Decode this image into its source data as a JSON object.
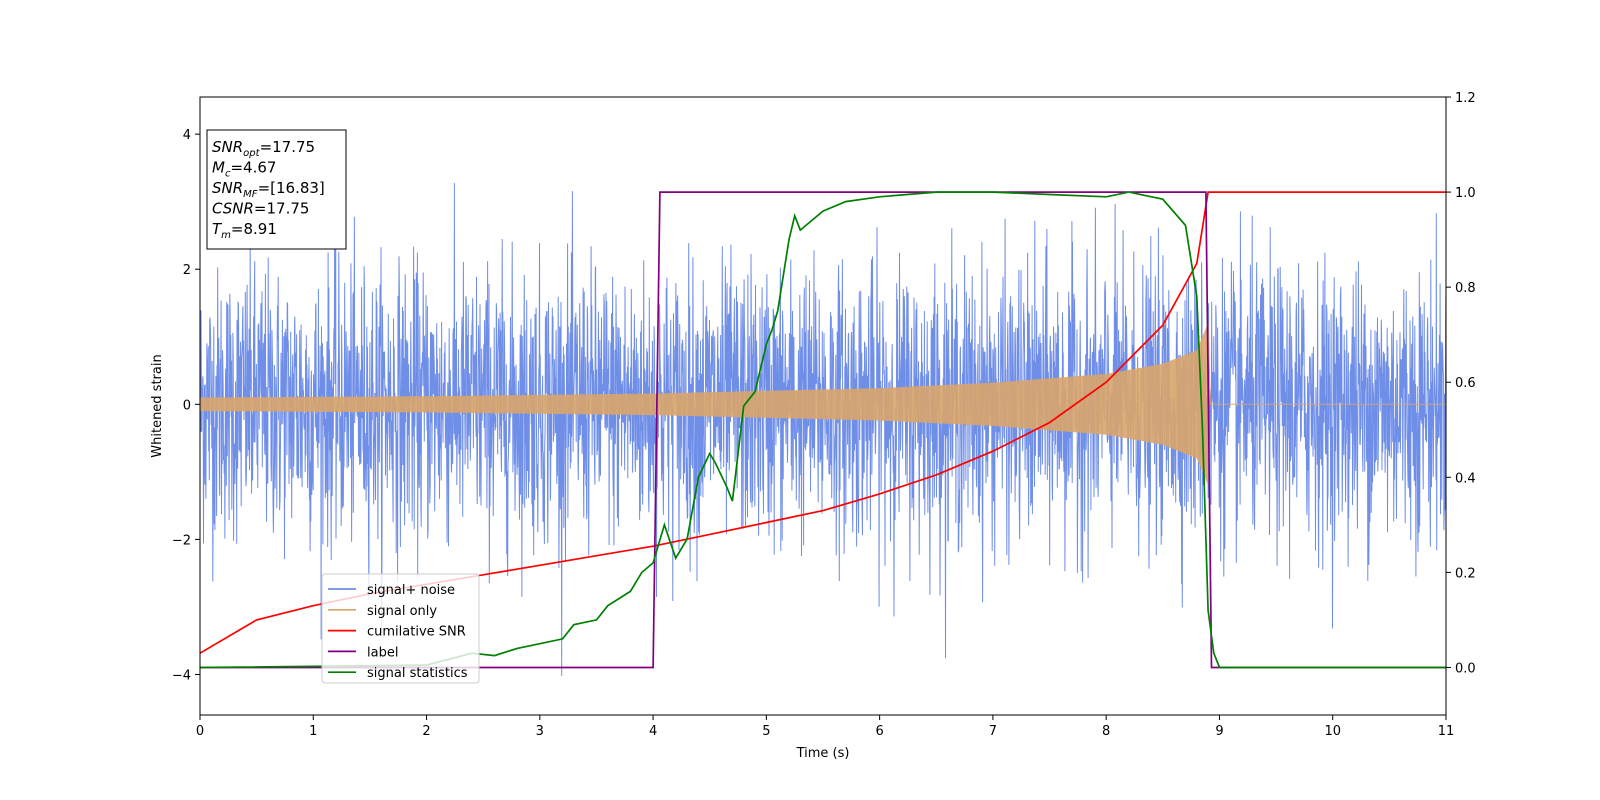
{
  "chart_data": {
    "type": "line",
    "xlabel": "Time (s)",
    "ylabel_left": "Whitened strain",
    "ylabel_right": "",
    "xlim": [
      0,
      11
    ],
    "ylim_left": [
      -4.6,
      4.55
    ],
    "ylim_right": [
      -0.1,
      1.2
    ],
    "x_ticks": [
      0,
      1,
      2,
      3,
      4,
      5,
      6,
      7,
      8,
      9,
      10,
      11
    ],
    "y_ticks_left": [
      -4,
      -2,
      0,
      2,
      4
    ],
    "y_ticks_right": [
      0.0,
      0.2,
      0.4,
      0.6,
      0.8,
      1.0,
      1.2
    ],
    "legend_position": "lower-left",
    "colors": {
      "signal_noise": "#6f8ee8",
      "signal_only": "#d9a56a",
      "cumulative_snr": "#ff0000",
      "label": "#800080",
      "signal_statistics": "#008000"
    },
    "info_box": [
      {
        "base": "SNR",
        "sub": "opt",
        "value": "=17.75"
      },
      {
        "base": "M",
        "sub": "c",
        "value": "=4.67"
      },
      {
        "base": "SNR",
        "sub": "MF",
        "value": "=[16.83]"
      },
      {
        "base": "CSNR",
        "sub": "",
        "value": "=17.75"
      },
      {
        "base": "T",
        "sub": "m",
        "value": "=8.91"
      }
    ],
    "series": [
      {
        "name": "signal+ noise",
        "axis": "left",
        "description_values": "whitened noise, amplitude ~±2.5 with spikes to about ±4.1, duration 0–11 s",
        "amplitude_std": 1.0
      },
      {
        "name": "signal only",
        "axis": "left",
        "chirp_start": 0.0,
        "chirp_end": 8.9,
        "envelope": [
          [
            0,
            0.1
          ],
          [
            2,
            0.12
          ],
          [
            4,
            0.16
          ],
          [
            5,
            0.2
          ],
          [
            6,
            0.24
          ],
          [
            7,
            0.32
          ],
          [
            8,
            0.45
          ],
          [
            8.5,
            0.6
          ],
          [
            8.8,
            0.8
          ],
          [
            8.9,
            1.2
          ]
        ]
      },
      {
        "name": "cumilative SNR",
        "axis": "right",
        "x": [
          0,
          0.5,
          1,
          1.5,
          2,
          2.5,
          3,
          3.5,
          4,
          4.5,
          5,
          5.5,
          6,
          6.5,
          7,
          7.5,
          8,
          8.5,
          8.8,
          8.9,
          9,
          11
        ],
        "y": [
          0.03,
          0.1,
          0.13,
          0.155,
          0.175,
          0.195,
          0.215,
          0.235,
          0.255,
          0.28,
          0.305,
          0.33,
          0.365,
          0.405,
          0.455,
          0.515,
          0.6,
          0.72,
          0.85,
          1.0,
          1.0,
          1.0
        ]
      },
      {
        "name": "label",
        "axis": "right",
        "x": [
          0,
          4.0,
          4.06,
          8.88,
          8.93,
          11
        ],
        "y": [
          0,
          0,
          1,
          1,
          0,
          0
        ]
      },
      {
        "name": "signal statistics",
        "axis": "right",
        "x": [
          0,
          2.0,
          2.4,
          2.6,
          2.8,
          3.0,
          3.2,
          3.3,
          3.5,
          3.6,
          3.8,
          3.9,
          4.0,
          4.1,
          4.2,
          4.3,
          4.4,
          4.5,
          4.55,
          4.65,
          4.7,
          4.8,
          4.9,
          5.0,
          5.05,
          5.1,
          5.2,
          5.25,
          5.3,
          5.5,
          5.7,
          6.0,
          6.5,
          7.0,
          7.5,
          8.0,
          8.2,
          8.5,
          8.7,
          8.8,
          8.85,
          8.9,
          8.95,
          9.0,
          11
        ],
        "y": [
          0.0,
          0.005,
          0.03,
          0.025,
          0.04,
          0.05,
          0.06,
          0.09,
          0.1,
          0.13,
          0.16,
          0.2,
          0.22,
          0.3,
          0.23,
          0.27,
          0.4,
          0.45,
          0.43,
          0.38,
          0.35,
          0.55,
          0.58,
          0.68,
          0.71,
          0.75,
          0.9,
          0.95,
          0.92,
          0.96,
          0.98,
          0.99,
          1.0,
          1.0,
          0.995,
          0.99,
          1.0,
          0.985,
          0.93,
          0.78,
          0.5,
          0.12,
          0.03,
          0.0,
          0.0
        ]
      }
    ]
  }
}
